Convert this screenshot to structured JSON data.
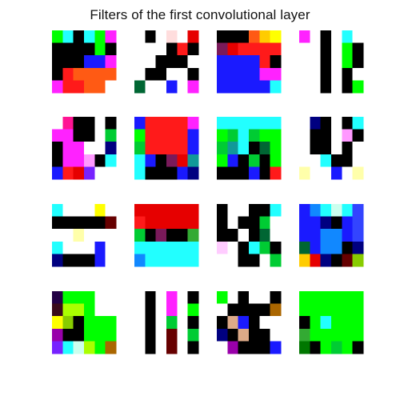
{
  "figure": {
    "title": "Filters of the first convolutional layer"
  },
  "palette": {
    "k": "#000000",
    "w": "#ffffff",
    "r": "#ff1a1a",
    "R": "#e60000",
    "g": "#00ff00",
    "G": "#00cc33",
    "b": "#1a1aff",
    "B": "#0000cc",
    "c": "#22ffff",
    "m": "#ff22ff",
    "y": "#ffff00",
    "o": "#ff5a14",
    "n": "#000080",
    "p": "#7a1a5a",
    "M": "#ff1493",
    "d": "#006633",
    "t": "#119999",
    "s": "#ffdddd",
    "v": "#7722ff",
    "l": "#ffffaa",
    "e": "#ff6699",
    "f": "#ccffee",
    "h": "#ff99ff",
    "u": "#1188ff",
    "j": "#ffcc00",
    "x": "#88cc00",
    "z": "#3a0a1a",
    "q": "#9900aa",
    "a": "#aaff00",
    "A": "#aa6600",
    "C": "#ddaa88",
    "D": "#007700",
    "E": "#220044",
    "F": "#33aa33",
    "H": "#0077aa",
    "I": "#ffccff",
    "J": "#660000",
    "K": "#bbbbbb",
    "L": "#3344ff"
  },
  "filters": [
    {
      "rows": [
        "gckcgm",
        "kkkkgk",
        "kkkbbm",
        "kroooo",
        "mrroo0"
      ]
    },
    {
      "rows": [
        "wkwswR",
        "wwwkrk",
        "wwkkkw",
        "wkkwwk",
        "dwwbwm"
      ]
    },
    {
      "rows": [
        "kkkojy",
        "pRrrrr",
        "bbbbrk",
        "bbbbmm",
        "bbbbbc"
      ]
    },
    {
      "rows": [
        "mwkwcw",
        "wwkwgk",
        "wwkwgk",
        "wwkwkw",
        "wwkwkg"
      ]
    },
    {
      "rows": [
        "wMkkwk",
        "mmkkwG",
        "kmmwwn",
        "kmmhkc",
        "brRvww"
      ]
    },
    {
      "rows": [
        "brrrrm",
        "grrrrb",
        "Grrrrb",
        "cbkpRt",
        "ckkkbn"
      ]
    },
    {
      "rows": [
        "cccccc",
        "gGcGgg",
        "Gtckdg",
        "gbkGkg",
        "kkkbkr"
      ]
    },
    {
      "rows": [
        "wnkwkc",
        "wkkwhk",
        "wkkwkw",
        "wwckkw",
        "lwwbwl"
      ]
    },
    {
      "rows": [
        "cwwwyw",
        "kkkkkJ",
        "wwlwww",
        "cwwwbw",
        "nkkkbw"
      ]
    },
    {
      "rows": [
        "RRRRRR",
        "rRRRRR",
        "GkpkkF",
        "cccccc",
        "uccccc"
      ]
    },
    {
      "rows": [
        "kwwkkc",
        "kwkkGw",
        "kkwkdw",
        "IwkcGk",
        "wwkkwG"
      ]
    },
    {
      "rows": [
        "bucfcL",
        "bbnkbL",
        "bbuubL",
        "dbuukn",
        "jRnkJx"
      ]
    },
    {
      "rows": [
        "Egggww",
        "zaagww",
        "yxkggg",
        "qkkggg",
        "vcfagA"
      ]
    },
    {
      "rows": [
        "wkwmwk",
        "wkwmwg",
        "wkwGwk",
        "wkwJwG",
        "wkwJwk"
      ]
    },
    {
      "rows": [
        "gwkwwk",
        "wkkkkA",
        "kCbkww",
        "nkCkkw",
        "wqkkkb"
      ]
    },
    {
      "rows": [
        "gggggg",
        "gggggg",
        "kgcggg",
        "Fggggg",
        "DkgGgk"
      ]
    }
  ]
}
